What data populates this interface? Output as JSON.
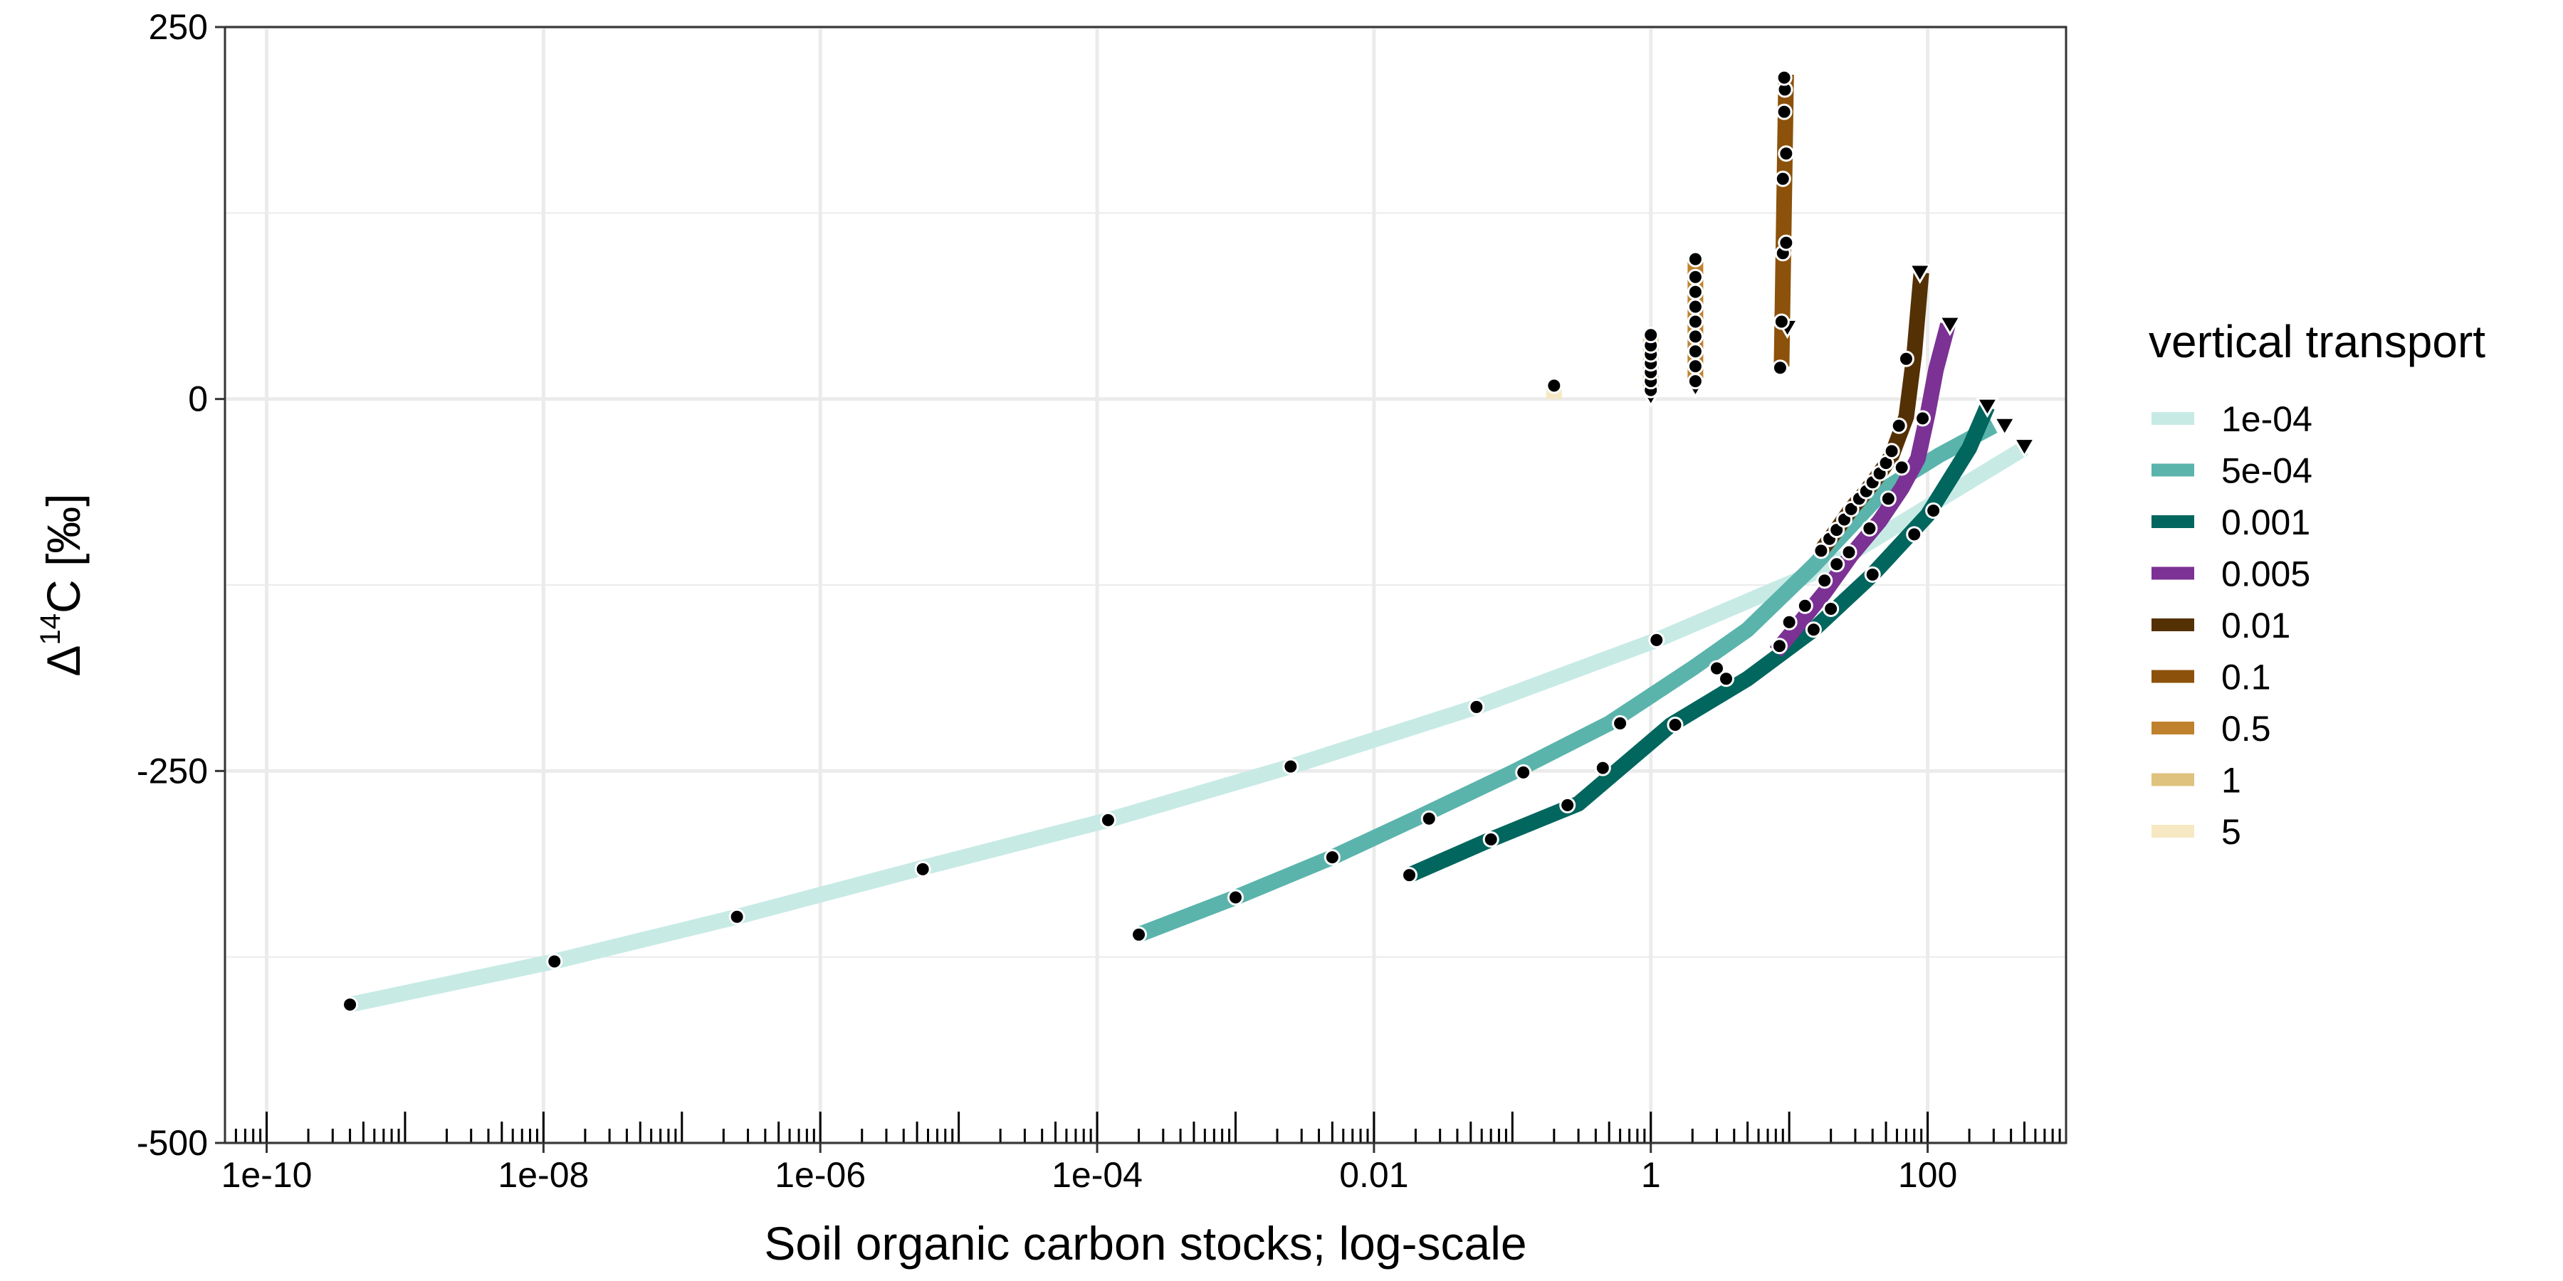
{
  "chart_data": {
    "type": "line",
    "xlabel": "Soil organic carbon stocks; log-scale",
    "ylabel_main": "Δ",
    "ylabel_sup": "14",
    "ylabel_rest": "C [‰]",
    "x_scale": "log10",
    "xlim": [
      5e-11,
      1000
    ],
    "ylim": [
      -500,
      250
    ],
    "x_ticks": [
      {
        "value": 1e-10,
        "label": "1e-10"
      },
      {
        "value": 1e-08,
        "label": "1e-08"
      },
      {
        "value": 1e-06,
        "label": "1e-06"
      },
      {
        "value": 0.0001,
        "label": "1e-04"
      },
      {
        "value": 0.01,
        "label": "0.01"
      },
      {
        "value": 1,
        "label": "1"
      },
      {
        "value": 100,
        "label": "100"
      }
    ],
    "y_ticks": [
      {
        "value": 250,
        "label": "250"
      },
      {
        "value": 0,
        "label": "0"
      },
      {
        "value": -250,
        "label": "-250"
      },
      {
        "value": -500,
        "label": "-500"
      }
    ],
    "y_minor_grid": [
      125,
      -125,
      -375
    ],
    "grid": true,
    "legend_title": "vertical transport",
    "legend_position": "right",
    "series": [
      {
        "name": "1e-04",
        "color": "#c7eae5",
        "width": 22,
        "x": [
          4e-10,
          1.2e-08,
          2.5e-07,
          5e-06,
          0.00012,
          0.0025,
          0.055,
          1.1,
          20,
          500
        ],
        "y": [
          -407,
          -378,
          -348,
          -316,
          -283,
          -247,
          -207,
          -162,
          -112,
          -33
        ],
        "points": [
          {
            "x": 4e-10,
            "y": -407
          },
          {
            "x": 1.2e-08,
            "y": -378
          },
          {
            "x": 2.5e-07,
            "y": -348
          },
          {
            "x": 5.5e-06,
            "y": -316
          },
          {
            "x": 0.00012,
            "y": -283
          },
          {
            "x": 0.0025,
            "y": -247
          },
          {
            "x": 0.055,
            "y": -207
          },
          {
            "x": 1.1,
            "y": -162
          }
        ],
        "triangles": [
          {
            "x": 500,
            "y": -32
          }
        ]
      },
      {
        "name": "5e-04",
        "color": "#5ab4ac",
        "width": 22,
        "x": [
          0.0002,
          0.001,
          0.005,
          0.02,
          0.1,
          0.5,
          2,
          5,
          15,
          50,
          120,
          300
        ],
        "y": [
          -360,
          -335,
          -308,
          -282,
          -251,
          -218,
          -181,
          -155,
          -112,
          -60,
          -38,
          -18
        ],
        "points": [
          {
            "x": 0.0002,
            "y": -360
          },
          {
            "x": 0.001,
            "y": -335
          },
          {
            "x": 0.005,
            "y": -308
          },
          {
            "x": 0.025,
            "y": -282
          },
          {
            "x": 0.12,
            "y": -251
          },
          {
            "x": 0.6,
            "y": -218
          },
          {
            "x": 3,
            "y": -181
          },
          {
            "x": 8.5,
            "y": -166
          },
          {
            "x": 20,
            "y": -141
          }
        ],
        "triangles": [
          {
            "x": 360,
            "y": -18
          }
        ]
      },
      {
        "name": "0.001",
        "color": "#01665e",
        "width": 22,
        "x": [
          0.018,
          0.07,
          0.3,
          1.4,
          5,
          15,
          40,
          100,
          200,
          270
        ],
        "y": [
          -320,
          -296,
          -272,
          -219,
          -188,
          -155,
          -118,
          -78,
          -33,
          -5
        ],
        "points": [
          {
            "x": 0.018,
            "y": -320
          },
          {
            "x": 0.07,
            "y": -296
          },
          {
            "x": 0.25,
            "y": -273
          },
          {
            "x": 0.45,
            "y": -248
          },
          {
            "x": 1.5,
            "y": -219
          },
          {
            "x": 3.5,
            "y": -188
          },
          {
            "x": 15,
            "y": -155
          },
          {
            "x": 40,
            "y": -118
          },
          {
            "x": 80,
            "y": -91
          },
          {
            "x": 110,
            "y": -75
          }
        ],
        "triangles": [
          {
            "x": 270,
            "y": -5
          }
        ]
      },
      {
        "name": "0.005",
        "color": "#7b3294",
        "width": 22,
        "x": [
          8,
          12,
          18,
          28,
          45,
          65,
          85,
          100,
          115,
          140
        ],
        "y": [
          -170,
          -150,
          -130,
          -105,
          -82,
          -60,
          -40,
          -10,
          20,
          50
        ],
        "points": [
          {
            "x": 10,
            "y": -150
          },
          {
            "x": 13,
            "y": -139
          },
          {
            "x": 18,
            "y": -122
          },
          {
            "x": 22,
            "y": -111
          },
          {
            "x": 27,
            "y": -103
          },
          {
            "x": 38,
            "y": -87
          },
          {
            "x": 52,
            "y": -67
          },
          {
            "x": 65,
            "y": -46
          },
          {
            "x": 92,
            "y": -13
          }
        ],
        "triangles": [
          {
            "x": 145,
            "y": 50
          }
        ]
      },
      {
        "name": "0.01",
        "color": "#543005",
        "width": 22,
        "x": [
          17,
          22,
          28,
          36,
          45,
          55,
          62,
          70,
          80,
          90
        ],
        "y": [
          -102,
          -88,
          -74,
          -62,
          -50,
          -38,
          -25,
          -12,
          30,
          85
        ],
        "points": [
          {
            "x": 17,
            "y": -102
          },
          {
            "x": 19.5,
            "y": -94
          },
          {
            "x": 22,
            "y": -88
          },
          {
            "x": 25,
            "y": -81
          },
          {
            "x": 28,
            "y": -74
          },
          {
            "x": 32,
            "y": -67
          },
          {
            "x": 36,
            "y": -62
          },
          {
            "x": 40,
            "y": -56
          },
          {
            "x": 45,
            "y": -50
          },
          {
            "x": 50,
            "y": -43
          },
          {
            "x": 55,
            "y": -35
          },
          {
            "x": 62,
            "y": -18
          },
          {
            "x": 70,
            "y": 27
          }
        ],
        "triangles": [
          {
            "x": 88,
            "y": 85
          }
        ]
      },
      {
        "name": "0.1",
        "color": "#8c510a",
        "width": 22,
        "x": [
          8.8,
          9.5
        ],
        "y": [
          22,
          218
        ],
        "points": [
          {
            "x": 8.6,
            "y": 21
          },
          {
            "x": 8.8,
            "y": 52
          },
          {
            "x": 9.0,
            "y": 98
          },
          {
            "x": 9.5,
            "y": 105
          },
          {
            "x": 9.0,
            "y": 148
          },
          {
            "x": 9.5,
            "y": 165
          },
          {
            "x": 9.2,
            "y": 193
          },
          {
            "x": 9.3,
            "y": 208
          },
          {
            "x": 9.2,
            "y": 216
          }
        ],
        "triangles": [
          {
            "x": 9.7,
            "y": 48
          }
        ]
      },
      {
        "name": "0.5",
        "color": "#bf812d",
        "width": 22,
        "x": [
          2.1,
          2.1
        ],
        "y": [
          12,
          92
        ],
        "points": [
          {
            "x": 2.1,
            "y": 12
          },
          {
            "x": 2.1,
            "y": 22
          },
          {
            "x": 2.1,
            "y": 32
          },
          {
            "x": 2.1,
            "y": 42
          },
          {
            "x": 2.1,
            "y": 52
          },
          {
            "x": 2.1,
            "y": 62
          },
          {
            "x": 2.1,
            "y": 72
          },
          {
            "x": 2.1,
            "y": 82
          },
          {
            "x": 2.1,
            "y": 94
          }
        ],
        "triangles": [
          {
            "x": 2.1,
            "y": 8
          }
        ]
      },
      {
        "name": "1",
        "color": "#dfc27d",
        "width": 22,
        "x": [
          1.0,
          1.0
        ],
        "y": [
          5,
          42
        ],
        "points": [
          {
            "x": 1.0,
            "y": 6
          },
          {
            "x": 1.0,
            "y": 12
          },
          {
            "x": 1.0,
            "y": 18
          },
          {
            "x": 1.0,
            "y": 24
          },
          {
            "x": 1.0,
            "y": 30
          },
          {
            "x": 1.0,
            "y": 36
          },
          {
            "x": 1.0,
            "y": 43
          }
        ],
        "triangles": [
          {
            "x": 1.0,
            "y": 2
          }
        ]
      },
      {
        "name": "5",
        "color": "#f6e8c3",
        "width": 22,
        "x": [
          0.2,
          0.2
        ],
        "y": [
          0,
          9
        ],
        "points": [
          {
            "x": 0.2,
            "y": 9
          }
        ],
        "triangles": []
      }
    ]
  }
}
